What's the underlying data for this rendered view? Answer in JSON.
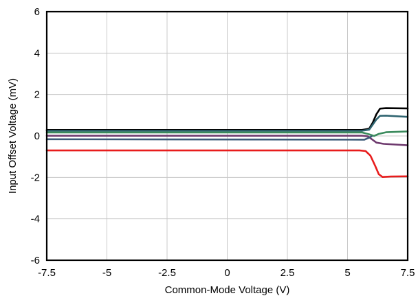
{
  "chart_data": {
    "type": "line",
    "title": "",
    "xlabel": "Common-Mode Voltage (V)",
    "ylabel": "Input Offset Voltage (mV)",
    "xlim": [
      -7.5,
      7.5
    ],
    "ylim": [
      -6,
      6
    ],
    "xticks": [
      -7.5,
      -5,
      -2.5,
      0,
      2.5,
      5,
      7.5
    ],
    "yticks": [
      -6,
      -4,
      -2,
      0,
      2,
      4,
      6
    ],
    "grid": true,
    "legend": "none",
    "series": [
      {
        "color": "#000000",
        "x": [
          -7.5,
          5.6,
          5.9,
          6.05,
          6.2,
          6.35,
          6.6,
          7.5
        ],
        "y": [
          0.29,
          0.29,
          0.35,
          0.65,
          1.05,
          1.32,
          1.34,
          1.33
        ]
      },
      {
        "color": "#2f6470",
        "x": [
          -7.5,
          5.6,
          5.9,
          6.05,
          6.2,
          6.35,
          6.6,
          7.5
        ],
        "y": [
          0.25,
          0.25,
          0.3,
          0.55,
          0.8,
          0.97,
          0.98,
          0.92
        ]
      },
      {
        "color": "#3a8a5c",
        "x": [
          -7.5,
          5.6,
          5.9,
          6.1,
          6.3,
          6.6,
          7.5
        ],
        "y": [
          0.17,
          0.17,
          0.08,
          0.0,
          0.1,
          0.18,
          0.22
        ]
      },
      {
        "color": "#6e3a6e",
        "x": [
          -7.5,
          5.6,
          5.85,
          6.0,
          6.2,
          6.5,
          7.5
        ],
        "y": [
          0.01,
          0.01,
          -0.02,
          -0.15,
          -0.32,
          -0.38,
          -0.45
        ]
      },
      {
        "color": "#3b5a78",
        "x": [
          -7.5,
          5.7,
          5.9,
          6.0
        ],
        "y": [
          -0.16,
          -0.18,
          -0.08,
          -0.02
        ]
      },
      {
        "color": "#e81c1c",
        "x": [
          -7.5,
          5.5,
          5.75,
          5.95,
          6.15,
          6.3,
          6.45,
          6.8,
          7.5
        ],
        "y": [
          -0.7,
          -0.7,
          -0.73,
          -0.95,
          -1.45,
          -1.85,
          -1.98,
          -1.96,
          -1.95
        ]
      }
    ]
  }
}
